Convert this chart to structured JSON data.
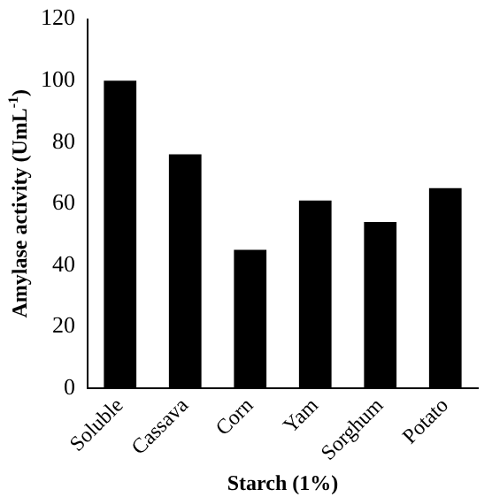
{
  "chart_data": {
    "type": "bar",
    "xlabel": "Starch (1%)",
    "ylabel": "Amylase activity (UmL$^{-1}$)",
    "categories": [
      "Soluble",
      "Cassava",
      "Corn",
      "Yam",
      "Sorghum",
      "Potato"
    ],
    "values": [
      100,
      76,
      45,
      61,
      54,
      65
    ],
    "color": "#000000",
    "ylim": [
      0,
      120
    ],
    "yticks": [
      0,
      20,
      40,
      60,
      80,
      100,
      120
    ],
    "grid": false,
    "legend": false
  }
}
